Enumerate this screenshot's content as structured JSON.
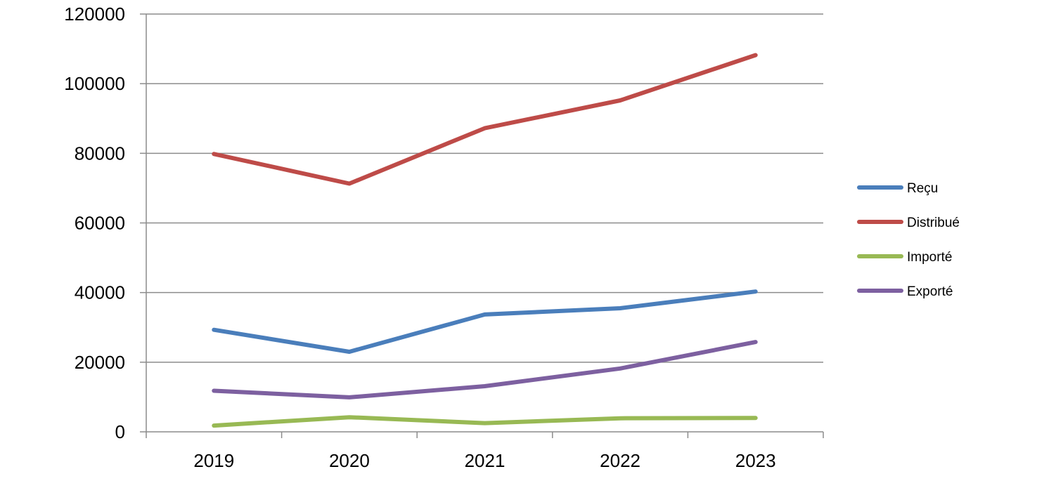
{
  "chart_data": {
    "type": "line",
    "title": "",
    "xlabel": "",
    "ylabel": "",
    "categories": [
      "2019",
      "2020",
      "2021",
      "2022",
      "2023"
    ],
    "ylim": [
      0,
      120000
    ],
    "yticks": [
      0,
      20000,
      40000,
      60000,
      80000,
      100000,
      120000
    ],
    "ytick_labels": [
      "0",
      "20000",
      "40000",
      "60000",
      "80000",
      "100000",
      "120000"
    ],
    "grid": true,
    "legend_position": "right",
    "series": [
      {
        "name": "Reçu",
        "color": "#4a7ebb",
        "values": [
          29300,
          23000,
          33700,
          35500,
          40300
        ]
      },
      {
        "name": "Distribué",
        "color": "#be4b48",
        "values": [
          79800,
          71300,
          87200,
          95200,
          108200
        ]
      },
      {
        "name": "Importé",
        "color": "#98b954",
        "values": [
          1800,
          4200,
          2500,
          3900,
          4000
        ]
      },
      {
        "name": "Exporté",
        "color": "#7d60a0",
        "values": [
          11800,
          9900,
          13100,
          18200,
          25800
        ]
      }
    ]
  }
}
